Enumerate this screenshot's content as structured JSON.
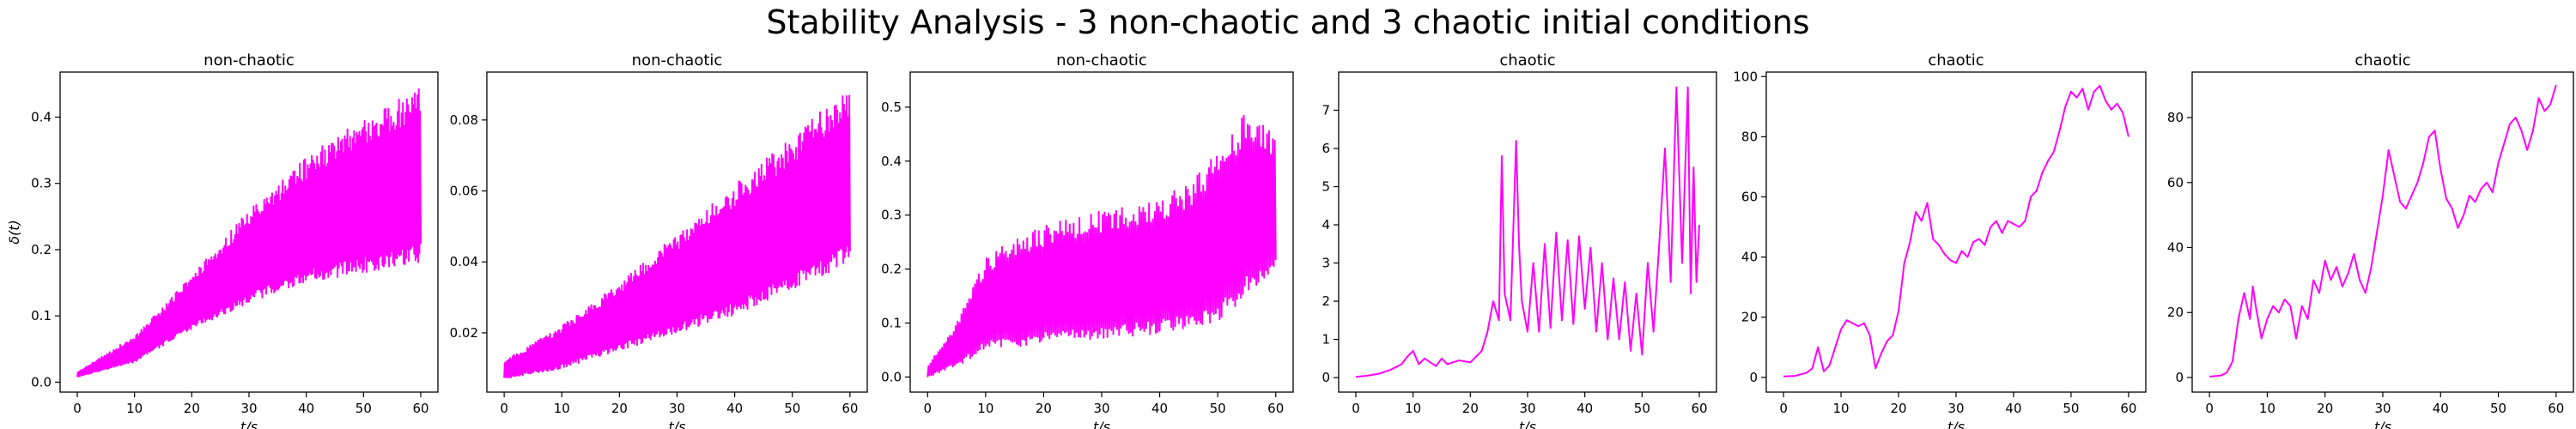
{
  "figure": {
    "suptitle": "Stability Analysis - 3 non-chaotic and 3 chaotic initial conditions",
    "line_color": "#ff00ff"
  },
  "chart_data": [
    {
      "type": "line",
      "title": "non-chaotic",
      "xlabel": "t/s",
      "ylabel": "δ(t)",
      "xlim": [
        -3,
        63
      ],
      "ylim": [
        -0.015,
        0.468
      ],
      "xticks": [
        0,
        10,
        20,
        30,
        40,
        50,
        60
      ],
      "yticks": [
        0.0,
        0.1,
        0.2,
        0.3,
        0.4
      ],
      "ytick_labels": [
        "0.0",
        "0.1",
        "0.2",
        "0.3",
        "0.4"
      ],
      "grid": false,
      "series": [
        {
          "style": "oscillating",
          "x_range": [
            0,
            60
          ],
          "n": 520,
          "upper_envelope": [
            [
              0,
              0.015
            ],
            [
              10,
              0.07
            ],
            [
              20,
              0.16
            ],
            [
              30,
              0.26
            ],
            [
              40,
              0.34
            ],
            [
              50,
              0.4
            ],
            [
              55,
              0.42
            ],
            [
              60,
              0.45
            ]
          ],
          "lower_envelope": [
            [
              0,
              0.008
            ],
            [
              10,
              0.03
            ],
            [
              20,
              0.08
            ],
            [
              30,
              0.12
            ],
            [
              40,
              0.15
            ],
            [
              50,
              0.165
            ],
            [
              60,
              0.18
            ]
          ]
        }
      ]
    },
    {
      "type": "line",
      "title": "non-chaotic",
      "xlabel": "t/s",
      "ylabel": "",
      "xlim": [
        -3,
        63
      ],
      "ylim": [
        0.0033,
        0.0935
      ],
      "xticks": [
        0,
        10,
        20,
        30,
        40,
        50,
        60
      ],
      "yticks": [
        0.02,
        0.04,
        0.06,
        0.08
      ],
      "ytick_labels": [
        "0.02",
        "0.04",
        "0.06",
        "0.08"
      ],
      "grid": false,
      "series": [
        {
          "style": "oscillating",
          "x_range": [
            0,
            60
          ],
          "n": 520,
          "upper_envelope": [
            [
              0,
              0.012
            ],
            [
              10,
              0.022
            ],
            [
              20,
              0.034
            ],
            [
              30,
              0.048
            ],
            [
              40,
              0.062
            ],
            [
              50,
              0.075
            ],
            [
              60,
              0.09
            ]
          ],
          "lower_envelope": [
            [
              0,
              0.007
            ],
            [
              10,
              0.01
            ],
            [
              20,
              0.015
            ],
            [
              30,
              0.02
            ],
            [
              40,
              0.025
            ],
            [
              50,
              0.032
            ],
            [
              60,
              0.04
            ]
          ]
        }
      ]
    },
    {
      "type": "line",
      "title": "non-chaotic",
      "xlabel": "t/s",
      "ylabel": "",
      "xlim": [
        -3,
        63
      ],
      "ylim": [
        -0.028,
        0.565
      ],
      "xticks": [
        0,
        10,
        20,
        30,
        40,
        50,
        60
      ],
      "yticks": [
        0.0,
        0.1,
        0.2,
        0.3,
        0.4,
        0.5
      ],
      "ytick_labels": [
        "0.0",
        "0.1",
        "0.2",
        "0.3",
        "0.4",
        "0.5"
      ],
      "grid": false,
      "series": [
        {
          "style": "oscillating",
          "x_range": [
            0,
            60
          ],
          "n": 360,
          "upper_envelope": [
            [
              0,
              0.02
            ],
            [
              5,
              0.1
            ],
            [
              10,
              0.22
            ],
            [
              15,
              0.26
            ],
            [
              20,
              0.28
            ],
            [
              30,
              0.31
            ],
            [
              40,
              0.33
            ],
            [
              45,
              0.36
            ],
            [
              50,
              0.42
            ],
            [
              55,
              0.5
            ],
            [
              60,
              0.45
            ]
          ],
          "lower_envelope": [
            [
              0,
              0.0
            ],
            [
              5,
              0.02
            ],
            [
              10,
              0.05
            ],
            [
              20,
              0.06
            ],
            [
              30,
              0.07
            ],
            [
              40,
              0.08
            ],
            [
              50,
              0.1
            ],
            [
              60,
              0.2
            ]
          ]
        }
      ]
    },
    {
      "type": "line",
      "title": "chaotic",
      "xlabel": "t/s",
      "ylabel": "",
      "xlim": [
        -3,
        63
      ],
      "ylim": [
        -0.38,
        8.0
      ],
      "xticks": [
        0,
        10,
        20,
        30,
        40,
        50,
        60
      ],
      "yticks": [
        0,
        1,
        2,
        3,
        4,
        5,
        6,
        7
      ],
      "ytick_labels": [
        "0",
        "1",
        "2",
        "3",
        "4",
        "5",
        "6",
        "7"
      ],
      "grid": false,
      "series": [
        {
          "style": "polyline",
          "points": [
            [
              0,
              0.02
            ],
            [
              2,
              0.05
            ],
            [
              4,
              0.1
            ],
            [
              6,
              0.2
            ],
            [
              8,
              0.35
            ],
            [
              9,
              0.55
            ],
            [
              10,
              0.7
            ],
            [
              11,
              0.35
            ],
            [
              12,
              0.5
            ],
            [
              14,
              0.3
            ],
            [
              15,
              0.5
            ],
            [
              16,
              0.35
            ],
            [
              18,
              0.45
            ],
            [
              20,
              0.4
            ],
            [
              21,
              0.55
            ],
            [
              22,
              0.7
            ],
            [
              23,
              1.2
            ],
            [
              24,
              2.0
            ],
            [
              25,
              1.5
            ],
            [
              25.5,
              5.8
            ],
            [
              26,
              2.2
            ],
            [
              27,
              1.5
            ],
            [
              28,
              6.2
            ],
            [
              28.5,
              3.5
            ],
            [
              29,
              2.0
            ],
            [
              30,
              1.2
            ],
            [
              31,
              3.0
            ],
            [
              32,
              1.2
            ],
            [
              33,
              3.5
            ],
            [
              34,
              1.3
            ],
            [
              35,
              3.8
            ],
            [
              36,
              1.5
            ],
            [
              37,
              3.6
            ],
            [
              38,
              1.4
            ],
            [
              39,
              3.7
            ],
            [
              40,
              1.8
            ],
            [
              41,
              3.4
            ],
            [
              42,
              1.2
            ],
            [
              43,
              3.0
            ],
            [
              44,
              1.0
            ],
            [
              45,
              2.6
            ],
            [
              46,
              1.0
            ],
            [
              47,
              2.5
            ],
            [
              48,
              0.7
            ],
            [
              49,
              2.2
            ],
            [
              50,
              0.6
            ],
            [
              51,
              3.0
            ],
            [
              52,
              1.2
            ],
            [
              53,
              3.5
            ],
            [
              54,
              6.0
            ],
            [
              55,
              2.5
            ],
            [
              56,
              7.6
            ],
            [
              57,
              3.0
            ],
            [
              58,
              7.6
            ],
            [
              58.5,
              2.2
            ],
            [
              59,
              5.5
            ],
            [
              59.5,
              2.5
            ],
            [
              60,
              4.0
            ]
          ]
        }
      ]
    },
    {
      "type": "line",
      "title": "chaotic",
      "xlabel": "t/s",
      "ylabel": "",
      "xlim": [
        -3,
        63
      ],
      "ylim": [
        -4.9,
        101.5
      ],
      "xticks": [
        0,
        10,
        20,
        30,
        40,
        50,
        60
      ],
      "yticks": [
        0,
        20,
        40,
        60,
        80,
        100
      ],
      "ytick_labels": [
        "0",
        "20",
        "40",
        "60",
        "80",
        "100"
      ],
      "grid": false,
      "series": [
        {
          "style": "polyline",
          "points": [
            [
              0,
              0.3
            ],
            [
              2,
              0.5
            ],
            [
              4,
              1.5
            ],
            [
              5,
              3
            ],
            [
              6,
              10
            ],
            [
              7,
              2
            ],
            [
              8,
              4
            ],
            [
              9,
              10
            ],
            [
              10,
              16
            ],
            [
              11,
              19
            ],
            [
              12,
              18
            ],
            [
              13,
              17
            ],
            [
              14,
              18
            ],
            [
              15,
              14
            ],
            [
              16,
              3
            ],
            [
              17,
              8
            ],
            [
              18,
              12
            ],
            [
              19,
              14
            ],
            [
              20,
              22
            ],
            [
              21,
              38
            ],
            [
              22,
              45
            ],
            [
              23,
              55
            ],
            [
              24,
              52
            ],
            [
              25,
              58
            ],
            [
              26,
              46
            ],
            [
              27,
              44
            ],
            [
              28,
              41
            ],
            [
              29,
              39
            ],
            [
              30,
              38
            ],
            [
              31,
              42
            ],
            [
              32,
              40
            ],
            [
              33,
              45
            ],
            [
              34,
              46
            ],
            [
              35,
              44
            ],
            [
              36,
              50
            ],
            [
              37,
              52
            ],
            [
              38,
              48
            ],
            [
              39,
              52
            ],
            [
              40,
              51
            ],
            [
              41,
              50
            ],
            [
              42,
              52
            ],
            [
              43,
              60
            ],
            [
              44,
              62
            ],
            [
              45,
              68
            ],
            [
              46,
              72
            ],
            [
              47,
              75
            ],
            [
              48,
              82
            ],
            [
              49,
              90
            ],
            [
              50,
              95
            ],
            [
              51,
              93
            ],
            [
              52,
              96
            ],
            [
              53,
              89
            ],
            [
              54,
              95
            ],
            [
              55,
              97
            ],
            [
              56,
              92
            ],
            [
              57,
              89
            ],
            [
              58,
              91
            ],
            [
              59,
              88
            ],
            [
              60,
              80
            ]
          ]
        }
      ]
    },
    {
      "type": "line",
      "title": "chaotic",
      "xlabel": "t/s",
      "ylabel": "",
      "xlim": [
        -3,
        63
      ],
      "ylim": [
        -4.5,
        94.0
      ],
      "xticks": [
        0,
        10,
        20,
        30,
        40,
        50,
        60
      ],
      "yticks": [
        0,
        20,
        40,
        60,
        80
      ],
      "ytick_labels": [
        "0",
        "20",
        "40",
        "60",
        "80"
      ],
      "grid": false,
      "series": [
        {
          "style": "polyline",
          "points": [
            [
              0,
              0.3
            ],
            [
              2,
              0.6
            ],
            [
              3,
              1.5
            ],
            [
              4,
              5
            ],
            [
              5,
              18
            ],
            [
              6,
              26
            ],
            [
              7,
              18
            ],
            [
              7.5,
              28
            ],
            [
              8,
              22
            ],
            [
              9,
              12
            ],
            [
              10,
              18
            ],
            [
              11,
              22
            ],
            [
              12,
              20
            ],
            [
              13,
              24
            ],
            [
              14,
              22
            ],
            [
              15,
              12
            ],
            [
              16,
              22
            ],
            [
              17,
              18
            ],
            [
              18,
              30
            ],
            [
              19,
              26
            ],
            [
              20,
              36
            ],
            [
              21,
              30
            ],
            [
              22,
              34
            ],
            [
              23,
              28
            ],
            [
              24,
              32
            ],
            [
              25,
              38
            ],
            [
              26,
              30
            ],
            [
              27,
              26
            ],
            [
              28,
              34
            ],
            [
              29,
              45
            ],
            [
              30,
              56
            ],
            [
              31,
              70
            ],
            [
              32,
              62
            ],
            [
              33,
              54
            ],
            [
              34,
              52
            ],
            [
              35,
              56
            ],
            [
              36,
              60
            ],
            [
              37,
              66
            ],
            [
              38,
              74
            ],
            [
              39,
              76
            ],
            [
              40,
              64
            ],
            [
              41,
              55
            ],
            [
              42,
              52
            ],
            [
              43,
              46
            ],
            [
              44,
              50
            ],
            [
              45,
              56
            ],
            [
              46,
              54
            ],
            [
              47,
              58
            ],
            [
              48,
              60
            ],
            [
              49,
              57
            ],
            [
              50,
              66
            ],
            [
              51,
              72
            ],
            [
              52,
              78
            ],
            [
              53,
              80
            ],
            [
              54,
              76
            ],
            [
              55,
              70
            ],
            [
              56,
              76
            ],
            [
              57,
              86
            ],
            [
              58,
              82
            ],
            [
              59,
              84
            ],
            [
              60,
              90
            ]
          ]
        }
      ]
    }
  ]
}
